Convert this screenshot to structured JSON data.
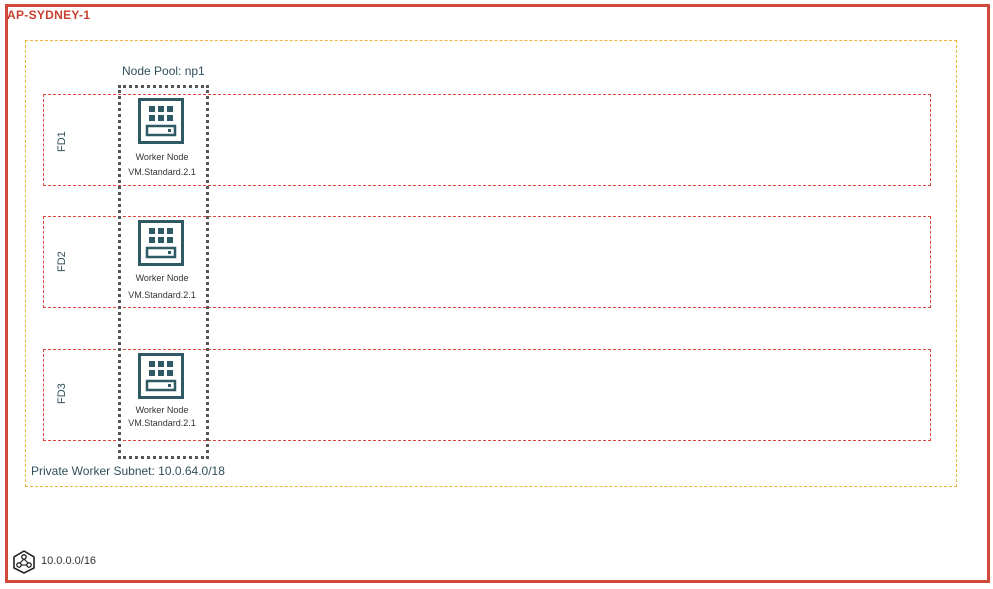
{
  "region": {
    "title": "AP-SYDNEY-1"
  },
  "subnet": {
    "label": "Private Worker Subnet: 10.0.64.0/18"
  },
  "node_pool": {
    "label": "Node Pool: np1"
  },
  "fault_domains": [
    {
      "label": "FD1",
      "node_name": "Worker Node",
      "node_shape": "VM.Standard.2.1"
    },
    {
      "label": "FD2",
      "node_name": "Worker Node",
      "node_shape": "VM.Standard.2.1"
    },
    {
      "label": "FD3",
      "node_name": "Worker Node",
      "node_shape": "VM.Standard.2.1"
    }
  ],
  "vcn": {
    "cidr": "10.0.0.0/16",
    "icon": "network-icon"
  },
  "colors": {
    "region_border": "#d04a3a",
    "subnet_border": "#f0b43c",
    "fd_border": "#e0473a",
    "icon": "#2f5a64"
  }
}
